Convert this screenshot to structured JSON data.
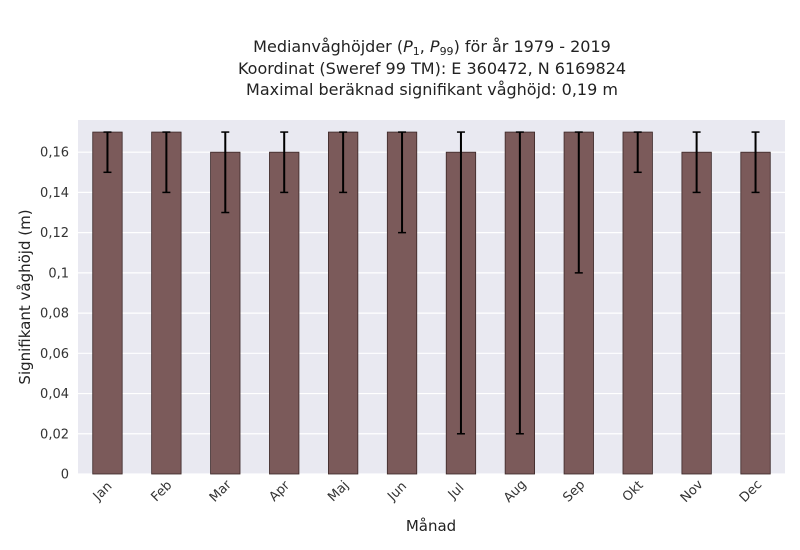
{
  "chart_data": {
    "type": "bar",
    "title": {
      "prefix": "Medianvåghöjder (",
      "p_low": "P",
      "p_low_sub": "1",
      "separator": ", ",
      "p_high": "P",
      "p_high_sub": "99",
      "suffix": ") för år 1979 - 2019"
    },
    "subtitle_lines": [
      "Koordinat (Sweref 99 TM): E 360472, N 6169824",
      "Maximal beräknad signifikant våghöjd: 0,19 m"
    ],
    "xlabel": "Månad",
    "ylabel": "Signifikant våghöjd (m)",
    "categories": [
      "Jan",
      "Feb",
      "Mar",
      "Apr",
      "Maj",
      "Jun",
      "Jul",
      "Aug",
      "Sep",
      "Okt",
      "Nov",
      "Dec"
    ],
    "values": [
      0.17,
      0.17,
      0.16,
      0.16,
      0.17,
      0.17,
      0.16,
      0.17,
      0.17,
      0.17,
      0.16,
      0.16
    ],
    "error_low": [
      0.15,
      0.14,
      0.13,
      0.14,
      0.14,
      0.12,
      0.02,
      0.02,
      0.1,
      0.15,
      0.14,
      0.14
    ],
    "error_high": [
      0.17,
      0.17,
      0.17,
      0.17,
      0.17,
      0.17,
      0.17,
      0.17,
      0.17,
      0.17,
      0.17,
      0.17
    ],
    "ylim": [
      0,
      0.176
    ],
    "yticks": [
      0,
      0.02,
      0.04,
      0.06,
      0.08,
      0.1,
      0.12,
      0.14,
      0.16
    ],
    "ytick_labels": [
      "0",
      "0,02",
      "0,04",
      "0,06",
      "0,08",
      "0,1",
      "0,12",
      "0,14",
      "0,16"
    ],
    "grid": true,
    "colors": {
      "bar": "#7b5a5a",
      "bar_edge": "#3a2626",
      "plot_bg": "#e9e9f1",
      "grid": "#ffffff",
      "error_bar": "#000000"
    }
  }
}
